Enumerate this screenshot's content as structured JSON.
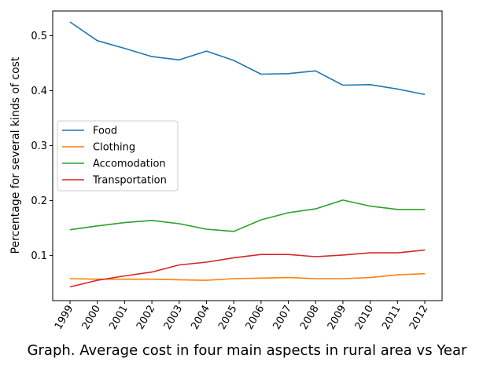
{
  "chart_data": {
    "type": "line",
    "title": "",
    "xlabel": "Graph. Average cost in four main aspects in rural area vs Year",
    "ylabel": "Percentage for several kinds of cost",
    "categories": [
      "1999",
      "2000",
      "2001",
      "2002",
      "2003",
      "2004",
      "2005",
      "2006",
      "2007",
      "2008",
      "2009",
      "2010",
      "2011",
      "2012"
    ],
    "y_ticks": [
      "0.1",
      "0.2",
      "0.3",
      "0.4",
      "0.5"
    ],
    "ylim": [
      0.018,
      0.545
    ],
    "grid": false,
    "legend_position": "center-left",
    "series": [
      {
        "name": "Food",
        "color": "#1f77b4",
        "values": [
          0.525,
          0.491,
          0.477,
          0.462,
          0.456,
          0.472,
          0.455,
          0.43,
          0.431,
          0.436,
          0.41,
          0.411,
          0.403,
          0.393
        ]
      },
      {
        "name": "Clothing",
        "color": "#ff7f0e",
        "values": [
          0.058,
          0.057,
          0.057,
          0.057,
          0.056,
          0.055,
          0.058,
          0.059,
          0.06,
          0.058,
          0.058,
          0.06,
          0.065,
          0.067
        ]
      },
      {
        "name": "Accomodation",
        "color": "#2ca02c",
        "values": [
          0.147,
          0.154,
          0.16,
          0.164,
          0.158,
          0.148,
          0.144,
          0.165,
          0.178,
          0.185,
          0.201,
          0.19,
          0.184,
          0.184
        ]
      },
      {
        "name": "Transportation",
        "color": "#d62728",
        "values": [
          0.043,
          0.055,
          0.063,
          0.07,
          0.083,
          0.088,
          0.096,
          0.102,
          0.102,
          0.098,
          0.101,
          0.105,
          0.105,
          0.11
        ]
      }
    ]
  }
}
